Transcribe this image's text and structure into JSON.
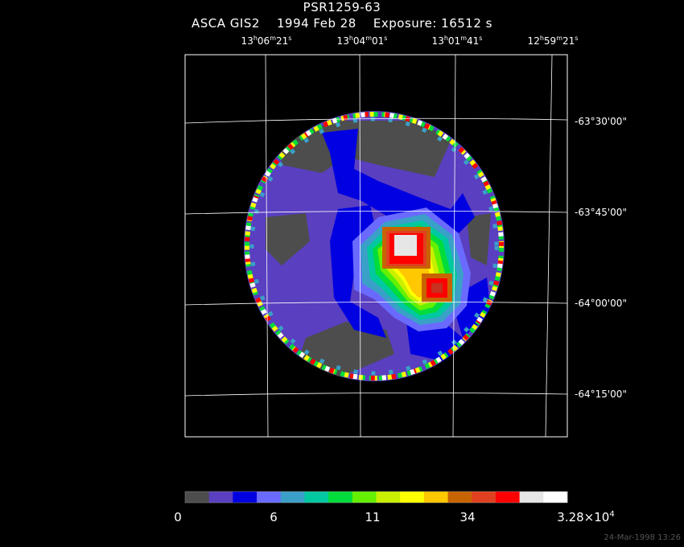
{
  "header": {
    "title": "PSR1259-63",
    "subtitle": "ASCA GIS2    1994 Feb 28    Exposure: 16512 s"
  },
  "axes": {
    "ra_ticks": [
      {
        "h": "13",
        "m": "06",
        "s": "21"
      },
      {
        "h": "13",
        "m": "04",
        "s": "01"
      },
      {
        "h": "13",
        "m": "01",
        "s": "41"
      },
      {
        "h": "12",
        "m": "59",
        "s": "21"
      }
    ],
    "dec_ticks": [
      "-63°30'00\"",
      "-63°45'00\"",
      "-64°00'00\"",
      "-64°15'00\""
    ]
  },
  "colorbar": {
    "labels": [
      "0",
      "6",
      "11",
      "34"
    ],
    "max_label_base": "3.28×10",
    "max_label_exp": "4",
    "colors": [
      "#4d4d4d",
      "#5a3fc0",
      "#0000e0",
      "#6a6aff",
      "#3aa0c8",
      "#00c8a0",
      "#00dc3c",
      "#64f000",
      "#c8f000",
      "#ffff00",
      "#ffc800",
      "#c86400",
      "#e04020",
      "#ff0000",
      "#e6e6e6",
      "#ffffff"
    ]
  },
  "image": {
    "description_colors": {
      "background": "#000000",
      "grid": "#ffffff"
    }
  },
  "timestamp": "24-Mar-1998 13:26"
}
